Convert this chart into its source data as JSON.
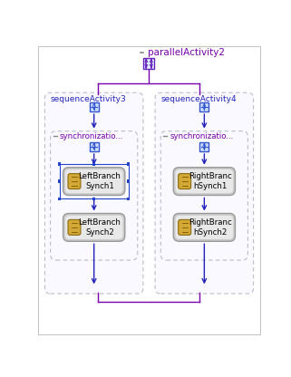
{
  "bg_color": "#ffffff",
  "blue_line": "#2222bb",
  "purple_line": "#7700aa",
  "title": "parallelActivity2",
  "title_color": "#7700aa",
  "seq3_label": "sequenceActivity3",
  "seq4_label": "sequenceActivity4",
  "sync3_label": "synchronizatio...",
  "sync4_label": "synchronizatio...",
  "lb1_label": "LeftBranch\nSynch1",
  "lb2_label": "LeftBranch\nSynch2",
  "rb1_label": "RightBranc\nhSynch1",
  "rb2_label": "RightBranc\nhSynch2",
  "label_color": "#2222bb",
  "sync_label_color": "#7700aa",
  "node_text_color": "#000000",
  "container_fill": "#f9f9ff",
  "container_edge": "#bbbbcc",
  "node_fill_outer": "#cccccc",
  "node_fill_inner": "#e8e8e8",
  "node_edge": "#999999",
  "icon_fill": "#d4a835",
  "icon_edge": "#8a6a10",
  "seq_icon_fill": "#ccdcff",
  "seq_icon_edge": "#3355cc",
  "par_icon_fill": "#ddeeff",
  "par_icon_edge": "#6622bb",
  "sel_color": "#2244cc",
  "minus_color": "#888888"
}
